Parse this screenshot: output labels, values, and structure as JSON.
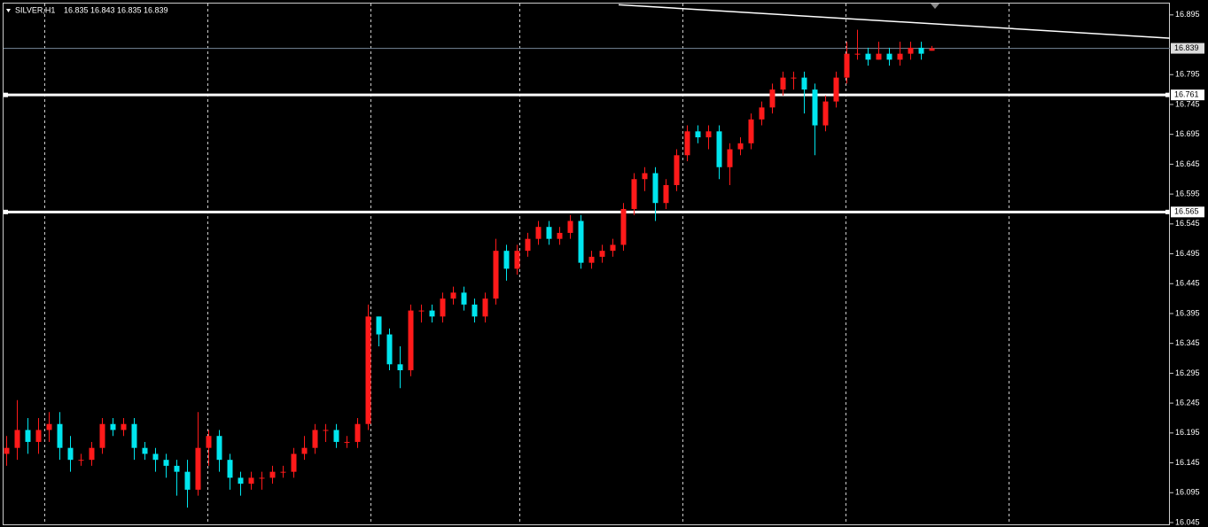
{
  "chart_data": {
    "type": "candlestick",
    "symbol": "SILVER,H1",
    "open": [
      16.16,
      16.17,
      16.2,
      16.18,
      16.2,
      16.21,
      16.17,
      16.15,
      16.15,
      16.17,
      16.21,
      16.2,
      16.21,
      16.17,
      16.16,
      16.15,
      16.14,
      16.13,
      16.1,
      16.17,
      16.19,
      16.15,
      16.12,
      16.11,
      16.12,
      16.12,
      16.13,
      16.13,
      16.16,
      16.17,
      16.2,
      16.2,
      16.18,
      16.18,
      16.21,
      16.39,
      16.36,
      16.31,
      16.3,
      16.4,
      16.4,
      16.39,
      16.42,
      16.43,
      16.41,
      16.39,
      16.42,
      16.5,
      16.47,
      16.5,
      16.52,
      16.54,
      16.52,
      16.53,
      16.55,
      16.48,
      16.49,
      16.5,
      16.51,
      16.57,
      16.62,
      16.63,
      16.58,
      16.61,
      16.66,
      16.7,
      16.69,
      16.7,
      16.64,
      16.67,
      16.68,
      16.72,
      16.74,
      16.77,
      16.79,
      16.79,
      16.77,
      16.71,
      16.75,
      16.79,
      16.83,
      16.83,
      16.82,
      16.83,
      16.82,
      16.83,
      16.84,
      16.835
    ],
    "high": [
      16.19,
      16.25,
      16.22,
      16.22,
      16.23,
      16.23,
      16.19,
      16.16,
      16.18,
      16.22,
      16.22,
      16.22,
      16.22,
      16.18,
      16.17,
      16.16,
      16.15,
      16.15,
      16.23,
      16.2,
      16.2,
      16.16,
      16.13,
      16.13,
      16.13,
      16.14,
      16.14,
      16.17,
      16.19,
      16.21,
      16.21,
      16.21,
      16.19,
      16.22,
      16.41,
      16.39,
      16.37,
      16.34,
      16.41,
      16.41,
      16.41,
      16.43,
      16.44,
      16.44,
      16.42,
      16.43,
      16.52,
      16.51,
      16.51,
      16.53,
      16.55,
      16.55,
      16.54,
      16.56,
      16.56,
      16.5,
      16.51,
      16.52,
      16.58,
      16.63,
      16.64,
      16.64,
      16.62,
      16.67,
      16.71,
      16.71,
      16.71,
      16.71,
      16.68,
      16.69,
      16.73,
      16.75,
      16.78,
      16.8,
      16.8,
      16.8,
      16.78,
      16.76,
      16.8,
      16.85,
      16.87,
      16.84,
      16.85,
      16.84,
      16.85,
      16.85,
      16.85,
      16.843
    ],
    "low": [
      16.14,
      16.15,
      16.16,
      16.16,
      16.18,
      16.15,
      16.13,
      16.14,
      16.14,
      16.16,
      16.19,
      16.19,
      16.15,
      16.15,
      16.13,
      16.12,
      16.09,
      16.07,
      16.09,
      16.14,
      16.13,
      16.1,
      16.09,
      16.1,
      16.1,
      16.11,
      16.12,
      16.12,
      16.15,
      16.16,
      16.18,
      16.17,
      16.17,
      16.17,
      16.2,
      16.34,
      16.3,
      16.27,
      16.29,
      16.38,
      16.38,
      16.38,
      16.41,
      16.4,
      16.38,
      16.38,
      16.41,
      16.45,
      16.46,
      16.49,
      16.51,
      16.51,
      16.51,
      16.52,
      16.47,
      16.47,
      16.48,
      16.49,
      16.5,
      16.56,
      16.6,
      16.55,
      16.57,
      16.6,
      16.65,
      16.68,
      16.67,
      16.62,
      16.61,
      16.66,
      16.67,
      16.71,
      16.73,
      16.76,
      16.77,
      16.73,
      16.66,
      16.7,
      16.74,
      16.78,
      16.82,
      16.81,
      16.82,
      16.81,
      16.81,
      16.82,
      16.82,
      16.835
    ],
    "close": [
      16.17,
      16.2,
      16.18,
      16.2,
      16.21,
      16.17,
      16.15,
      16.15,
      16.17,
      16.21,
      16.2,
      16.21,
      16.17,
      16.16,
      16.15,
      16.14,
      16.13,
      16.1,
      16.17,
      16.19,
      16.15,
      16.12,
      16.11,
      16.12,
      16.12,
      16.13,
      16.13,
      16.16,
      16.17,
      16.2,
      16.2,
      16.18,
      16.18,
      16.21,
      16.39,
      16.36,
      16.31,
      16.3,
      16.4,
      16.4,
      16.39,
      16.42,
      16.43,
      16.41,
      16.39,
      16.42,
      16.5,
      16.47,
      16.5,
      16.52,
      16.54,
      16.52,
      16.53,
      16.55,
      16.48,
      16.49,
      16.5,
      16.51,
      16.57,
      16.62,
      16.63,
      16.58,
      16.61,
      16.66,
      16.7,
      16.69,
      16.7,
      16.64,
      16.67,
      16.68,
      16.72,
      16.74,
      16.77,
      16.79,
      16.79,
      16.77,
      16.71,
      16.75,
      16.79,
      16.83,
      16.83,
      16.82,
      16.83,
      16.82,
      16.83,
      16.84,
      16.83,
      16.839
    ],
    "up_color": "#ff1a1a",
    "down_color": "#00e5ee",
    "ylim": [
      16.042,
      16.914
    ],
    "yticks": [
      16.895,
      16.795,
      16.745,
      16.695,
      16.645,
      16.595,
      16.545,
      16.495,
      16.445,
      16.395,
      16.345,
      16.295,
      16.245,
      16.195,
      16.145,
      16.095,
      16.045
    ],
    "hlines": [
      16.761,
      16.565
    ],
    "trendline": [
      16.912,
      16.856
    ]
  }
}
